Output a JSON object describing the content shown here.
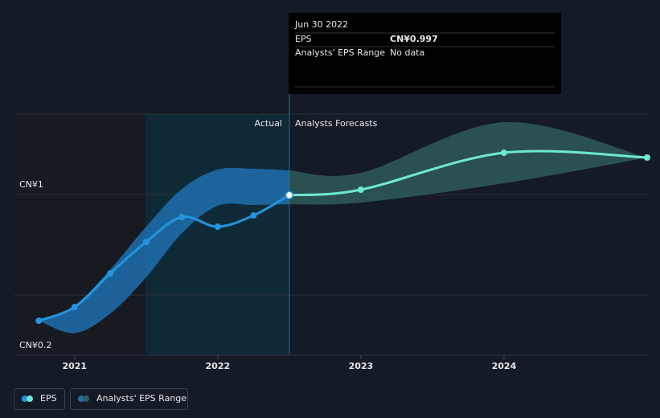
{
  "chart_data": {
    "type": "line",
    "xlim": [
      2020.58,
      2025
    ],
    "xticks": [
      2021,
      2022,
      2023,
      2024
    ],
    "ylim": [
      0.2,
      1.4
    ],
    "yticks": [
      {
        "value": 0.2,
        "label": "CN¥0.2"
      },
      {
        "value": 1,
        "label": "CN¥1"
      }
    ],
    "grid": true,
    "actual_end": 2022.5,
    "actual_label": "Actual",
    "forecast_label": "Analysts Forecasts",
    "series": [
      {
        "name": "EPS",
        "color": "#2394df",
        "forecast_color": "#6fe8d0",
        "x": [
          2020.75,
          2021,
          2021.25,
          2021.5,
          2021.75,
          2022,
          2022.25,
          2022.5,
          2023,
          2024,
          2025
        ],
        "values": [
          0.372,
          0.44,
          0.608,
          0.764,
          0.888,
          0.84,
          0.896,
          0.997,
          1.024,
          1.208,
          1.184
        ]
      }
    ],
    "range": {
      "name": "Analysts' EPS Range",
      "color": "#1f6fae",
      "forecast_color": "#2f5f5b",
      "x": [
        2020.75,
        2021,
        2021.25,
        2021.5,
        2021.75,
        2022,
        2022.25,
        2022.5,
        2023,
        2024,
        2025
      ],
      "low": [
        0.372,
        0.31,
        0.408,
        0.588,
        0.808,
        0.944,
        0.948,
        0.952,
        0.96,
        1.056,
        1.184
      ],
      "high": [
        0.372,
        0.448,
        0.628,
        0.84,
        1.028,
        1.124,
        1.128,
        1.12,
        1.108,
        1.36,
        1.184
      ]
    },
    "tooltip": {
      "title": "Jun 30 2022",
      "rows": [
        {
          "label": "EPS",
          "value": "CN¥0.997"
        },
        {
          "label": "Analysts' EPS Range",
          "value": "No data"
        }
      ]
    }
  }
}
